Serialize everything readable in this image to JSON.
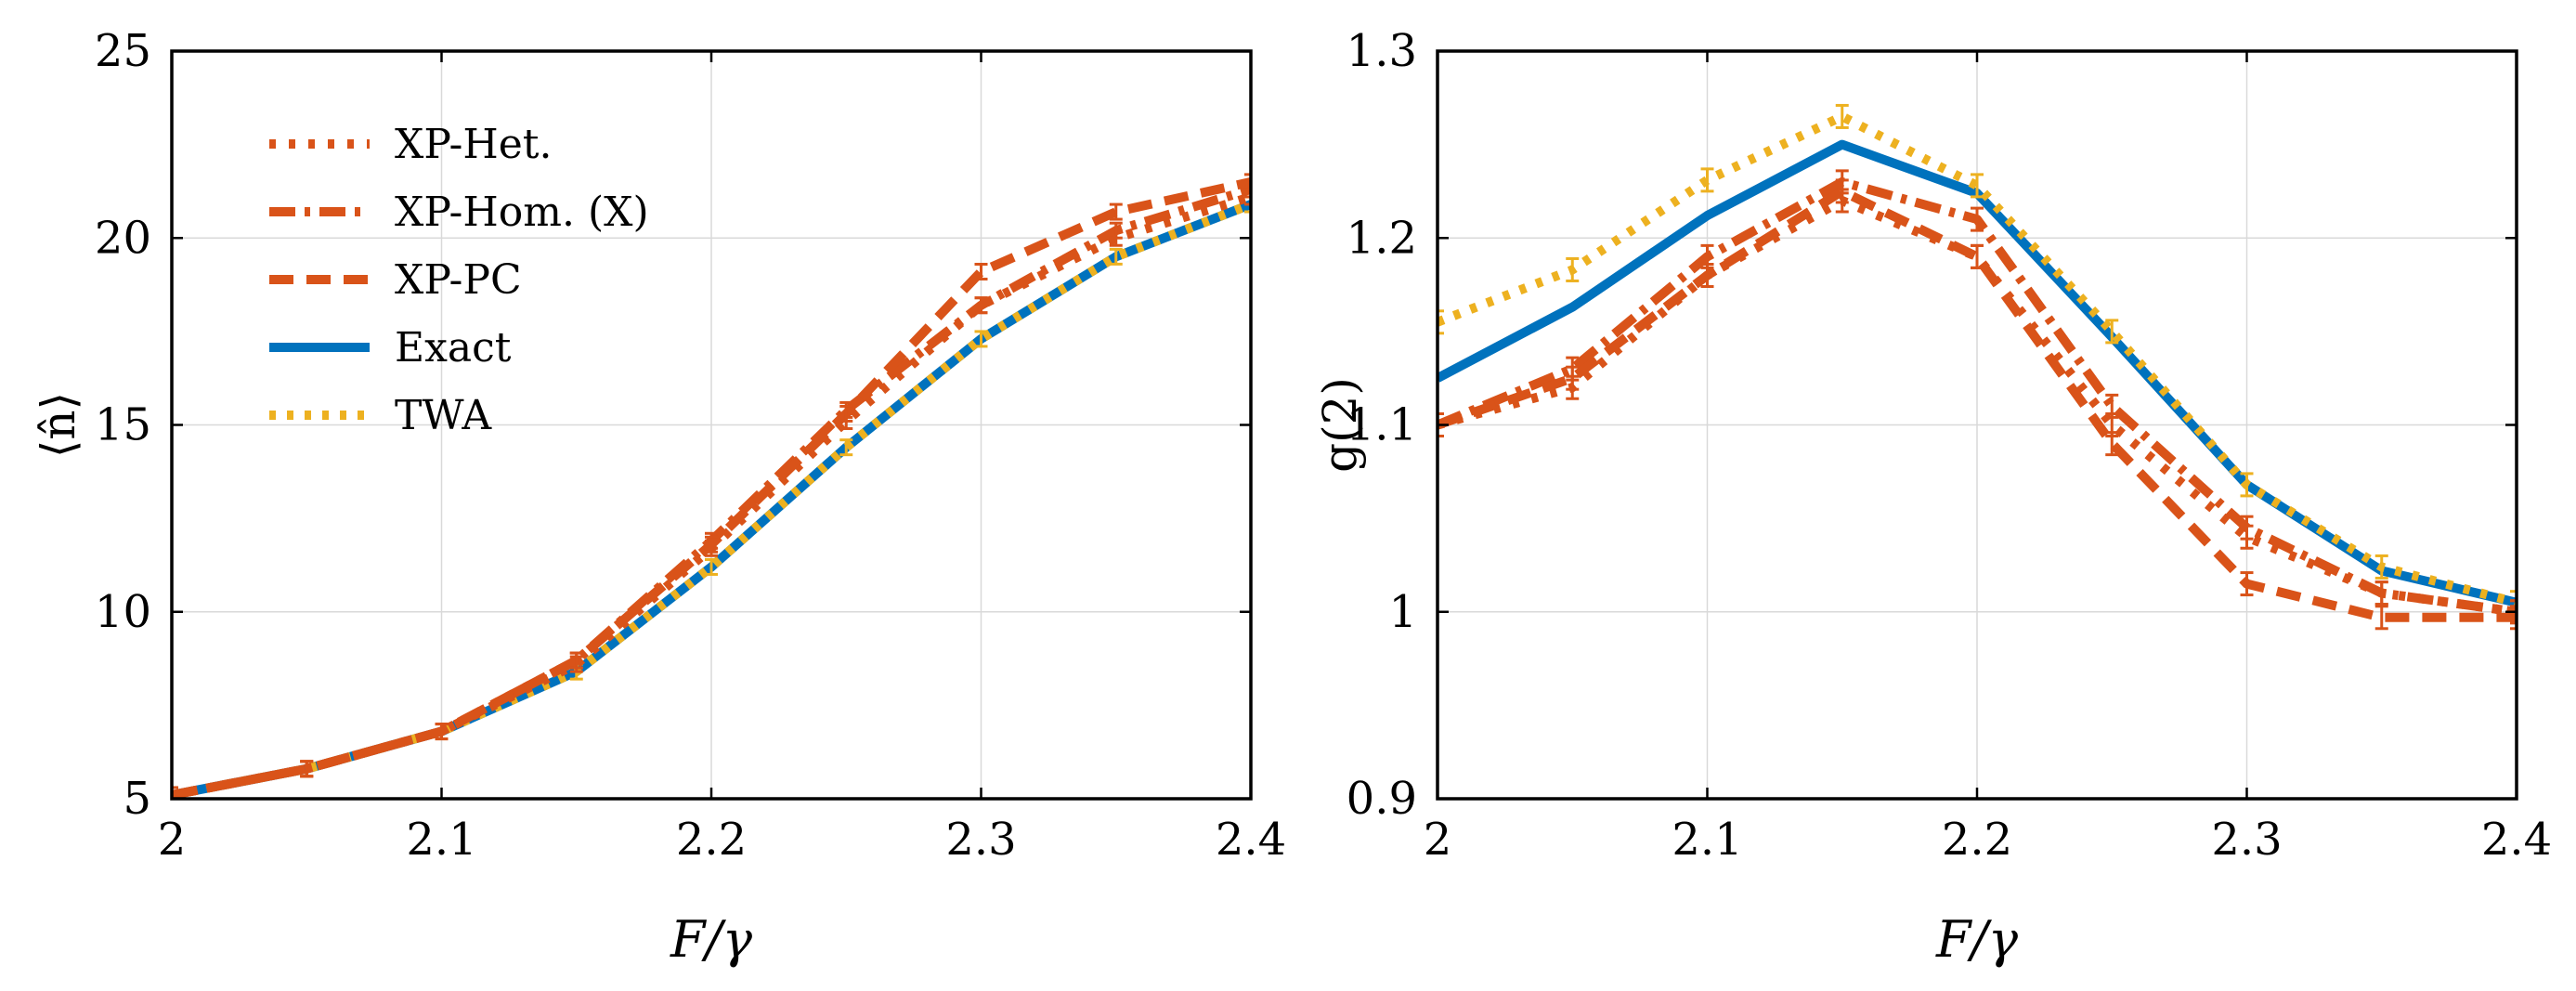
{
  "colors": {
    "xp_het": "#D95319",
    "xp_hom": "#D95319",
    "xp_pc": "#D95319",
    "exact": "#0072BD",
    "twa": "#EDB120"
  },
  "chart_data": [
    {
      "type": "line",
      "xlabel": "F/γ",
      "ylabel": "⟨n̂⟩",
      "xlim": [
        2,
        2.4
      ],
      "ylim": [
        5,
        25
      ],
      "xticks": [
        "2",
        "2.1",
        "2.2",
        "2.3",
        "2.4"
      ],
      "yticks": [
        "5",
        "10",
        "15",
        "20",
        "25"
      ],
      "legend": "top-left",
      "x": [
        2.0,
        2.05,
        2.1,
        2.15,
        2.2,
        2.25,
        2.3,
        2.35,
        2.4
      ],
      "series": [
        {
          "name": "XP-Het.",
          "style": "dotted",
          "values": [
            5.1,
            5.8,
            6.8,
            8.6,
            11.7,
            15.1,
            18.2,
            20.0,
            21.1
          ]
        },
        {
          "name": "XP-Hom. (X)",
          "style": "dashdot",
          "values": [
            5.1,
            5.8,
            6.8,
            8.7,
            11.9,
            15.4,
            18.2,
            20.2,
            21.3
          ]
        },
        {
          "name": "XP-PC",
          "style": "dashed",
          "values": [
            5.1,
            5.8,
            6.8,
            8.7,
            11.8,
            15.3,
            19.1,
            20.7,
            21.5
          ]
        },
        {
          "name": "Exact",
          "style": "solid",
          "values": [
            5.1,
            5.8,
            6.8,
            8.4,
            11.2,
            14.4,
            17.3,
            19.5,
            20.9
          ]
        },
        {
          "name": "TWA",
          "style": "dotted",
          "values": [
            5.1,
            5.8,
            6.8,
            8.4,
            11.2,
            14.4,
            17.3,
            19.5,
            20.9
          ]
        }
      ]
    },
    {
      "type": "line",
      "xlabel": "F/γ",
      "ylabel": "g(2)",
      "xlim": [
        2,
        2.4
      ],
      "ylim": [
        0.9,
        1.3
      ],
      "xticks": [
        "2",
        "2.1",
        "2.2",
        "2.3",
        "2.4"
      ],
      "yticks": [
        "0.9",
        "1",
        "1.1",
        "1.2",
        "1.3"
      ],
      "x": [
        2.0,
        2.05,
        2.1,
        2.15,
        2.2,
        2.25,
        2.3,
        2.35,
        2.4
      ],
      "series": [
        {
          "name": "XP-Het.",
          "style": "dotted",
          "values": [
            1.1,
            1.12,
            1.18,
            1.22,
            1.19,
            1.1,
            1.04,
            1.01,
            1.0
          ]
        },
        {
          "name": "XP-Hom. (X)",
          "style": "dashdot",
          "values": [
            1.1,
            1.13,
            1.19,
            1.23,
            1.21,
            1.11,
            1.045,
            1.01,
            1.0
          ]
        },
        {
          "name": "XP-PC",
          "style": "dashed",
          "values": [
            1.1,
            1.125,
            1.18,
            1.225,
            1.19,
            1.09,
            1.015,
            0.997,
            0.997
          ]
        },
        {
          "name": "Exact",
          "style": "solid",
          "values": [
            1.125,
            1.163,
            1.212,
            1.25,
            1.224,
            1.147,
            1.068,
            1.022,
            1.005
          ]
        },
        {
          "name": "TWA",
          "style": "dotted",
          "values": [
            1.155,
            1.183,
            1.231,
            1.265,
            1.228,
            1.15,
            1.068,
            1.024,
            1.005
          ]
        }
      ]
    }
  ]
}
